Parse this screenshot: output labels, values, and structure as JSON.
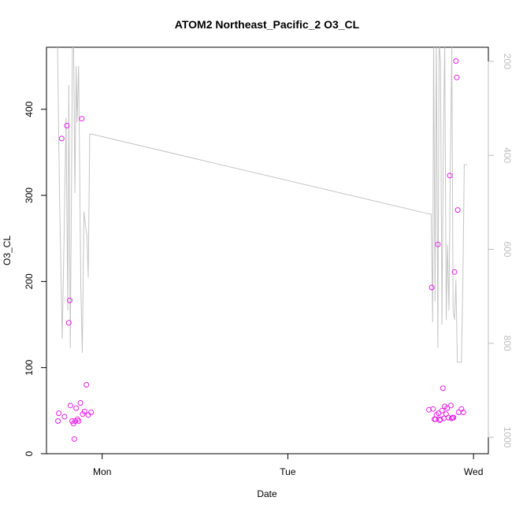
{
  "chart_data": {
    "type": "scatter",
    "title": "ATOM2 Northeast_Pacific_2 O3_CL",
    "xlabel": "Date",
    "ylabel": "O3_CL",
    "x_ticks": [
      "Mon",
      "Tue",
      "Wed"
    ],
    "x_tick_values": [
      1.0,
      2.0,
      3.0
    ],
    "xlim": [
      0.7,
      3.08
    ],
    "ylim": [
      0,
      472
    ],
    "y_ticks": [
      0,
      100,
      200,
      300,
      400
    ],
    "y2_ticks": [
      200,
      400,
      600,
      800,
      1000
    ],
    "y2lim": [
      1035,
      170
    ],
    "y2_reversed": true,
    "grid": false,
    "legend": "none",
    "colors": {
      "points": "#e61ee6",
      "line": "#c4c4c4",
      "axis": "#000000",
      "right_axis": "#bdbdbd"
    },
    "series": [
      {
        "type": "scatter",
        "x": [
          0.762,
          0.766,
          0.782,
          0.797,
          0.81,
          0.82,
          0.825,
          0.829,
          0.838,
          0.845,
          0.85,
          0.855,
          0.86,
          0.867,
          0.873,
          0.883,
          0.89,
          0.895,
          0.905,
          0.915,
          0.925,
          0.94,
          2.76,
          2.775,
          2.782,
          2.79,
          2.795,
          2.8,
          2.808,
          2.812,
          2.818,
          2.822,
          2.83,
          2.835,
          2.84,
          2.845,
          2.852,
          2.858,
          2.865,
          2.872,
          2.878,
          2.882,
          2.888,
          2.892,
          2.898,
          2.905,
          2.91,
          2.915,
          2.92,
          2.935,
          2.945
        ],
        "y": [
          38,
          47,
          366,
          43,
          381,
          152,
          178,
          56,
          38,
          35,
          17,
          38,
          53,
          40,
          38,
          59,
          389,
          46,
          49,
          80,
          45,
          48,
          51,
          193,
          52,
          40,
          40,
          45,
          243,
          47,
          39,
          40,
          50,
          76,
          41,
          55,
          46,
          53,
          42,
          323,
          56,
          41,
          42,
          42,
          211,
          456,
          437,
          283,
          48,
          52,
          48
        ]
      },
      {
        "type": "line",
        "axis": "right",
        "x": [
          0.76,
          0.77,
          0.785,
          0.795,
          0.805,
          0.815,
          0.82,
          0.828,
          0.835,
          0.84,
          0.845,
          0.853,
          0.86,
          0.865,
          0.873,
          0.885,
          0.893,
          0.902,
          0.91,
          0.918,
          0.925,
          0.933,
          0.945,
          2.765,
          2.772,
          2.78,
          2.785,
          2.793,
          2.8,
          2.808,
          2.815,
          2.822,
          2.83,
          2.838,
          2.845,
          2.853,
          2.86,
          2.868,
          2.875,
          2.883,
          2.89,
          2.898,
          2.905,
          2.913,
          2.92,
          2.928,
          2.935,
          2.943,
          2.95,
          2.958,
          2.965
        ],
        "y": [
          170,
          480,
          790,
          570,
          320,
          730,
          250,
          810,
          455,
          170,
          120,
          480,
          210,
          330,
          210,
          680,
          820,
          520,
          550,
          570,
          660,
          355,
          355,
          525,
          525,
          755,
          145,
          710,
          150,
          810,
          160,
          200,
          760,
          350,
          160,
          750,
          590,
          730,
          420,
          170,
          730,
          750,
          665,
          840,
          840,
          840,
          840,
          660,
          420,
          420,
          420
        ]
      }
    ]
  }
}
